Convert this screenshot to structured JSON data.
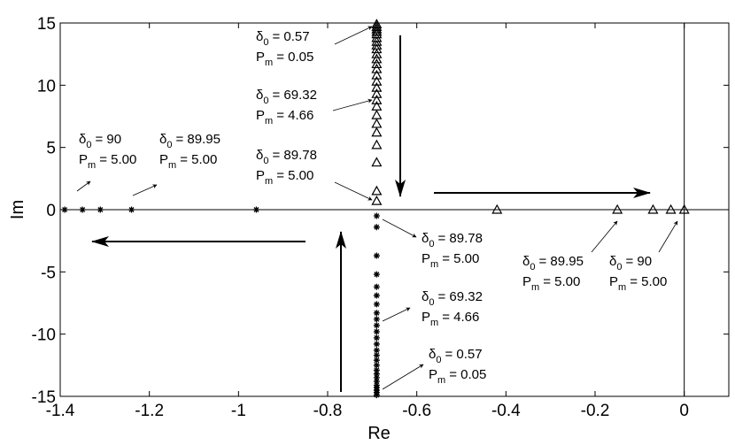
{
  "chart_data": {
    "type": "scatter",
    "xlabel": "Re",
    "ylabel": "Im",
    "xlim": [
      -1.4,
      0.1
    ],
    "ylim": [
      -15,
      15
    ],
    "xticks": [
      -1.4,
      -1.2,
      -1,
      -0.8,
      -0.6,
      -0.4,
      -0.2,
      0
    ],
    "yticks": [
      -15,
      -10,
      -5,
      0,
      5,
      10,
      15
    ],
    "zero_lines": true,
    "series": [
      {
        "marker": "star",
        "color": "#000000",
        "x": [
          -1.39,
          -1.35,
          -1.31,
          -1.24,
          -0.96,
          -0.69,
          -0.69,
          -0.69,
          -0.69,
          -0.69,
          -0.69,
          -0.69,
          -0.69,
          -0.69,
          -0.69,
          -0.69,
          -0.69,
          -0.69,
          -0.69,
          -0.69,
          -0.69,
          -0.69,
          -0.69,
          -0.69,
          -0.69,
          -0.69,
          -0.69,
          -0.69,
          -0.69,
          -0.69,
          -0.69
        ],
        "y": [
          0,
          0,
          0,
          0,
          0,
          -0.5,
          -1.4,
          -3.7,
          -5.2,
          -6.2,
          -6.9,
          -7.6,
          -8.3,
          -8.8,
          -9.3,
          -9.8,
          -10.3,
          -10.8,
          -11.3,
          -11.7,
          -12.1,
          -12.5,
          -12.9,
          -13.2,
          -13.5,
          -13.8,
          -14.1,
          -14.3,
          -14.5,
          -14.7,
          -14.9
        ]
      },
      {
        "marker": "triangle",
        "color": "#000000",
        "x": [
          -0.69,
          -0.69,
          -0.69,
          -0.69,
          -0.69,
          -0.69,
          -0.69,
          -0.69,
          -0.69,
          -0.69,
          -0.69,
          -0.69,
          -0.69,
          -0.69,
          -0.69,
          -0.69,
          -0.69,
          -0.69,
          -0.69,
          -0.69,
          -0.69,
          -0.69,
          -0.69,
          -0.69,
          -0.69,
          -0.69,
          -0.42,
          -0.15,
          -0.07,
          -0.03,
          0
        ],
        "y": [
          0.7,
          1.5,
          3.8,
          5.2,
          6.2,
          6.9,
          7.6,
          8.3,
          8.8,
          9.3,
          9.8,
          10.3,
          10.8,
          11.3,
          11.7,
          12.1,
          12.5,
          12.9,
          13.2,
          13.5,
          13.8,
          14.1,
          14.3,
          14.5,
          14.7,
          14.9,
          0,
          0,
          0,
          0,
          0
        ]
      }
    ],
    "annotations": [
      {
        "lines": [
          {
            "symbol": "δ",
            "sub": "0",
            "text": "= 0.57"
          },
          {
            "symbol": "P",
            "sub": "m",
            "text": "= 0.05"
          }
        ]
      },
      {
        "lines": [
          {
            "symbol": "δ",
            "sub": "0",
            "text": "= 69.32"
          },
          {
            "symbol": "P",
            "sub": "m",
            "text": "= 4.66"
          }
        ]
      },
      {
        "lines": [
          {
            "symbol": "δ",
            "sub": "0",
            "text": "= 89.78"
          },
          {
            "symbol": "P",
            "sub": "m",
            "text": "= 5.00"
          }
        ]
      },
      {
        "lines": [
          {
            "symbol": "δ",
            "sub": "0",
            "text": "= 90"
          },
          {
            "symbol": "P",
            "sub": "m",
            "text": "= 5.00"
          }
        ]
      },
      {
        "lines": [
          {
            "symbol": "δ",
            "sub": "0",
            "text": "= 89.95"
          },
          {
            "symbol": "P",
            "sub": "m",
            "text": "= 5.00"
          }
        ]
      },
      {
        "lines": [
          {
            "symbol": "δ",
            "sub": "0",
            "text": "= 89.78"
          },
          {
            "symbol": "P",
            "sub": "m",
            "text": "= 5.00"
          }
        ]
      },
      {
        "lines": [
          {
            "symbol": "δ",
            "sub": "0",
            "text": "= 69.32"
          },
          {
            "symbol": "P",
            "sub": "m",
            "text": "= 4.66"
          }
        ]
      },
      {
        "lines": [
          {
            "symbol": "δ",
            "sub": "0",
            "text": "= 0.57"
          },
          {
            "symbol": "P",
            "sub": "m",
            "text": "= 0.05"
          }
        ]
      },
      {
        "lines": [
          {
            "symbol": "δ",
            "sub": "0",
            "text": "= 89.95"
          },
          {
            "symbol": "P",
            "sub": "m",
            "text": "= 5.00"
          }
        ]
      },
      {
        "lines": [
          {
            "symbol": "δ",
            "sub": "0",
            "text": "= 90"
          },
          {
            "symbol": "P",
            "sub": "m",
            "text": "= 5.00"
          }
        ]
      }
    ]
  }
}
